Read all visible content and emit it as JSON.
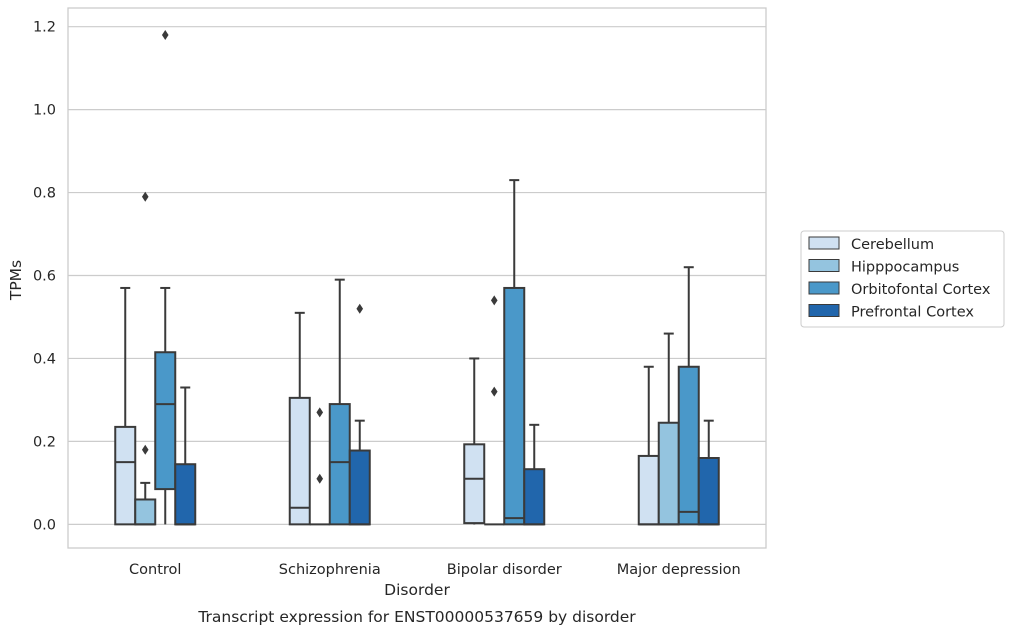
{
  "chart_data": {
    "type": "box",
    "title": "",
    "caption": "Transcript expression for ENST00000537659 by disorder",
    "xlabel": "Disorder",
    "ylabel": "TPMs",
    "ylim": [
      -0.057,
      1.245
    ],
    "yticks": [
      "0.0",
      "0.2",
      "0.4",
      "0.6",
      "0.8",
      "1.0",
      "1.2"
    ],
    "ytick_values": [
      0,
      0.2,
      0.4,
      0.6,
      0.8,
      1.0,
      1.2
    ],
    "grid": "horizontal",
    "legend_position": "right",
    "categories": [
      "Control",
      "Schizophrenia",
      "Bipolar disorder",
      "Major depression"
    ],
    "series": [
      {
        "name": "Cerebellum",
        "color": "#d0e1f2",
        "boxes": [
          {
            "whisker_low": 0.0,
            "q1": 0.0,
            "median": 0.15,
            "q3": 0.235,
            "whisker_high": 0.57,
            "outliers": []
          },
          {
            "whisker_low": 0.0,
            "q1": 0.0,
            "median": 0.04,
            "q3": 0.305,
            "whisker_high": 0.51,
            "outliers": []
          },
          {
            "whisker_low": 0.0,
            "q1": 0.003,
            "median": 0.11,
            "q3": 0.193,
            "whisker_high": 0.4,
            "outliers": []
          },
          {
            "whisker_low": 0.0,
            "q1": 0.0,
            "median": 0.0,
            "q3": 0.165,
            "whisker_high": 0.38,
            "outliers": []
          }
        ]
      },
      {
        "name": "Hipppocampus",
        "color": "#94c4df",
        "boxes": [
          {
            "whisker_low": 0.0,
            "q1": 0.0,
            "median": 0.0,
            "q3": 0.06,
            "whisker_high": 0.1,
            "outliers": [
              0.18,
              0.79
            ]
          },
          {
            "whisker_low": 0.0,
            "q1": 0.0,
            "median": 0.0,
            "q3": 0.0,
            "whisker_high": 0.0,
            "outliers": [
              0.11,
              0.27
            ]
          },
          {
            "whisker_low": 0.0,
            "q1": 0.0,
            "median": 0.0,
            "q3": 0.0,
            "whisker_high": 0.0,
            "outliers": [
              0.32,
              0.54
            ]
          },
          {
            "whisker_low": 0.0,
            "q1": 0.0,
            "median": 0.0,
            "q3": 0.245,
            "whisker_high": 0.46,
            "outliers": []
          }
        ]
      },
      {
        "name": "Orbitofontal Cortex",
        "color": "#4a98c9",
        "boxes": [
          {
            "whisker_low": 0.0,
            "q1": 0.085,
            "median": 0.29,
            "q3": 0.415,
            "whisker_high": 0.57,
            "outliers": [
              1.18
            ]
          },
          {
            "whisker_low": 0.0,
            "q1": 0.0,
            "median": 0.15,
            "q3": 0.29,
            "whisker_high": 0.59,
            "outliers": []
          },
          {
            "whisker_low": 0.0,
            "q1": 0.0,
            "median": 0.015,
            "q3": 0.57,
            "whisker_high": 0.83,
            "outliers": []
          },
          {
            "whisker_low": 0.0,
            "q1": 0.0,
            "median": 0.03,
            "q3": 0.38,
            "whisker_high": 0.62,
            "outliers": []
          }
        ]
      },
      {
        "name": "Prefrontal Cortex",
        "color": "#2166ac",
        "boxes": [
          {
            "whisker_low": 0.0,
            "q1": 0.0,
            "median": 0.0,
            "q3": 0.145,
            "whisker_high": 0.33,
            "outliers": []
          },
          {
            "whisker_low": 0.0,
            "q1": 0.0,
            "median": 0.0,
            "q3": 0.178,
            "whisker_high": 0.25,
            "outliers": [
              0.52
            ]
          },
          {
            "whisker_low": 0.0,
            "q1": 0.0,
            "median": 0.0,
            "q3": 0.133,
            "whisker_high": 0.24,
            "outliers": []
          },
          {
            "whisker_low": 0.0,
            "q1": 0.0,
            "median": 0.0,
            "q3": 0.16,
            "whisker_high": 0.25,
            "outliers": []
          }
        ]
      }
    ]
  }
}
